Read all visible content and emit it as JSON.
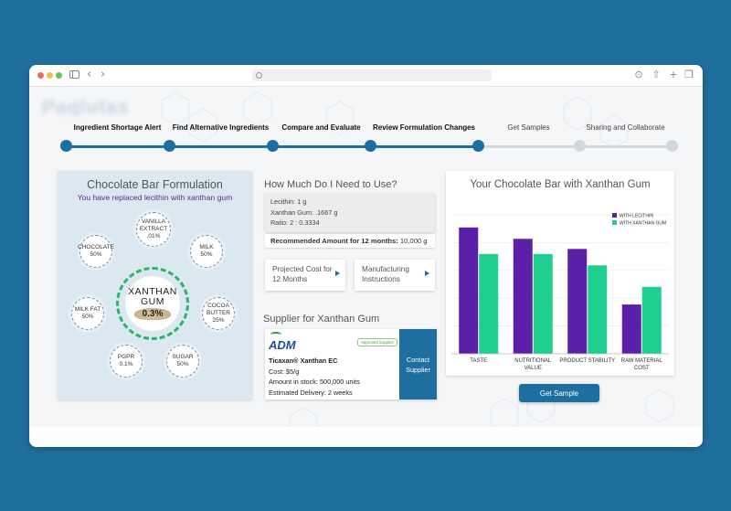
{
  "browser": {
    "traffic_lights": [
      "#ee6a5f",
      "#f5bd4f",
      "#61c454"
    ],
    "url": ""
  },
  "brand": {
    "logo_text": "Paqlutas"
  },
  "stepper": {
    "steps": [
      {
        "label": "Ingredient Shortage Alert",
        "done": true
      },
      {
        "label": "Find Alternative Ingredients",
        "done": true
      },
      {
        "label": "Compare and Evaluate",
        "done": true
      },
      {
        "label": "Review Formulation Changes",
        "done": true
      },
      {
        "label": "Get Samples",
        "done": false
      },
      {
        "label": "Sharing and Collaborate",
        "done": false
      }
    ]
  },
  "formulation": {
    "title": "Chocolate Bar Formulation",
    "subtitle": "You have replaced lecithin with xanthan gum",
    "center": {
      "line1": "XANTHAN",
      "line2": "GUM",
      "value": "0.3%"
    },
    "ingredients": [
      {
        "name": "VANILLA\nEXTRACT",
        "value": ".01%"
      },
      {
        "name": "MILK",
        "value": "50%"
      },
      {
        "name": "COCOA\nBUTTER",
        "value": "25%"
      },
      {
        "name": "SUGAR",
        "value": "50%"
      },
      {
        "name": "PGPR",
        "value": "0.1%"
      },
      {
        "name": "MILK FAT",
        "value": "50%"
      },
      {
        "name": "CHOCOLATE",
        "value": "50%"
      }
    ]
  },
  "usage": {
    "title": "How Much Do I Need to Use?",
    "lines": [
      "Lecithin: 1 g",
      "Xanthan Gum: .1667 g",
      "Ratio: 2 : 0.3334"
    ],
    "recommended_label": "Recommended Amount for 12 months:",
    "recommended_value": "10,000 g"
  },
  "actions": {
    "projected_cost": "Projected Cost for 12 Months",
    "manufacturing": "Manufacturing Instructions"
  },
  "supplier": {
    "title": "Supplier for Xanthan Gum",
    "logo": "ADM",
    "badge": "Approved Supplier",
    "product": "Ticaxan® Xanthan EC",
    "cost": "Cost: $5/g",
    "stock": "Amount in stock: 500,000 units",
    "delivery": "Estimated Delivery: 2 weeks",
    "contact_label": "Contact Supplier"
  },
  "chart_title": "Your Chocolate Bar with Xanthan Gum",
  "chart_data": {
    "type": "bar",
    "categories": [
      "TASTE",
      "NUTRITIONAL VALUE",
      "PRODUCT STABILITY",
      "RAW MATERIAL COST"
    ],
    "series": [
      {
        "name": "WITH LECITHIN",
        "color": "#5b1fa8",
        "values": [
          100,
          91,
          83,
          39
        ]
      },
      {
        "name": "WITH XANTHAN GUM",
        "color": "#1fcf8f",
        "values": [
          79,
          79,
          70,
          53
        ]
      }
    ],
    "ylim": [
      0,
      110
    ],
    "grid": true,
    "legend": "top-right",
    "xlabel": "",
    "ylabel": ""
  },
  "get_sample_label": "Get Sample"
}
